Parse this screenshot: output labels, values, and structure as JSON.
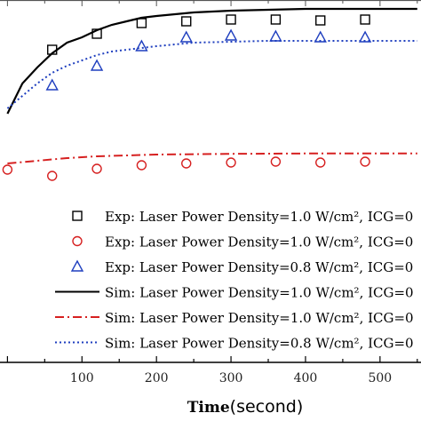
{
  "chart_data": {
    "type": "scatter",
    "xlabel": {
      "bold": "Time",
      "regular": "(second)"
    },
    "xlim": [
      -10,
      555
    ],
    "ylim": [
      0,
      1
    ],
    "x_ticks": [
      "100",
      "200",
      "300",
      "400",
      "500"
    ],
    "x_tick_values": [
      100,
      200,
      300,
      400,
      500
    ],
    "grid": false,
    "legend_position": "lower-right",
    "series": [
      {
        "name": "Exp: Laser Power Density=1.0 W/cm², ICG=0",
        "kind": "markers",
        "marker": "square",
        "color": "#000000",
        "x": [
          60,
          120,
          180,
          240,
          300,
          360,
          420,
          480
        ],
        "y": [
          0.71,
          0.8,
          0.86,
          0.87,
          0.88,
          0.88,
          0.875,
          0.88
        ]
      },
      {
        "name": "Exp: Laser Power Density=1.0 W/cm², ICG=0",
        "kind": "markers",
        "marker": "circle",
        "color": "#d62020",
        "x": [
          0,
          60,
          120,
          180,
          240,
          300,
          360,
          420,
          480
        ],
        "y": [
          0.035,
          0.0,
          0.04,
          0.06,
          0.07,
          0.075,
          0.08,
          0.075,
          0.08
        ]
      },
      {
        "name": "Exp: Laser Power Density=0.8 W/cm², ICG=0",
        "kind": "markers",
        "marker": "triangle",
        "color": "#1f3fbf",
        "x": [
          60,
          120,
          180,
          240,
          300,
          360,
          420,
          480
        ],
        "y": [
          0.51,
          0.62,
          0.73,
          0.78,
          0.79,
          0.785,
          0.78,
          0.78
        ]
      },
      {
        "name": "Sim: Laser Power Density=1.0 W/cm², ICG=0",
        "kind": "line",
        "dash": "solid",
        "color": "#000000",
        "x": [
          0,
          20,
          40,
          60,
          80,
          100,
          120,
          140,
          160,
          180,
          200,
          250,
          300,
          350,
          400,
          450,
          500,
          550
        ],
        "y": [
          0.35,
          0.52,
          0.61,
          0.69,
          0.75,
          0.78,
          0.82,
          0.85,
          0.87,
          0.89,
          0.9,
          0.92,
          0.93,
          0.935,
          0.94,
          0.94,
          0.94,
          0.94
        ]
      },
      {
        "name": "Sim: Laser Power Density=1.0 W/cm², ICG=0",
        "kind": "line",
        "dash": "dashdot",
        "color": "#d62020",
        "x": [
          0,
          40,
          80,
          120,
          160,
          200,
          250,
          300,
          350,
          400,
          450,
          500,
          550
        ],
        "y": [
          0.07,
          0.085,
          0.1,
          0.11,
          0.115,
          0.12,
          0.122,
          0.124,
          0.125,
          0.126,
          0.126,
          0.126,
          0.126
        ]
      },
      {
        "name": "Sim: Laser Power Density=0.8 W/cm², ICG=0",
        "kind": "line",
        "dash": "dotted",
        "color": "#1f3fbf",
        "x": [
          0,
          20,
          40,
          60,
          80,
          100,
          120,
          140,
          160,
          180,
          200,
          250,
          300,
          350,
          400,
          450,
          500,
          550
        ],
        "y": [
          0.38,
          0.45,
          0.52,
          0.58,
          0.62,
          0.65,
          0.68,
          0.7,
          0.71,
          0.72,
          0.73,
          0.75,
          0.755,
          0.76,
          0.76,
          0.76,
          0.76,
          0.76
        ]
      }
    ]
  }
}
